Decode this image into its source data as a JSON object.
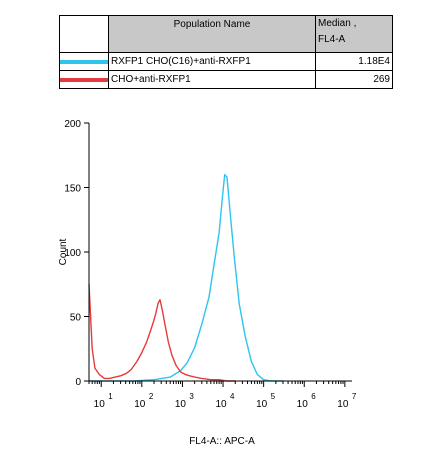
{
  "legend": {
    "header_name": "Population Name",
    "header_median_line1": "Median ,",
    "header_median_line2": "FL4-A",
    "rows": [
      {
        "name": "RXFP1 CHO(C16)+anti-RXFP1",
        "median": "1.18E4",
        "color": "#2ec4ec"
      },
      {
        "name": "CHO+anti-RXFP1",
        "median": "269",
        "color": "#e83a3a"
      }
    ]
  },
  "chart_data": {
    "type": "line",
    "xlabel": "FL4-A:: APC-A",
    "ylabel": "Count",
    "xscale": "log",
    "xlim": [
      5,
      15000000
    ],
    "ylim": [
      0,
      200
    ],
    "yticks": [
      0,
      50,
      100,
      150,
      200
    ],
    "xticks": [
      {
        "base": "10",
        "exp": "1"
      },
      {
        "base": "10",
        "exp": "2"
      },
      {
        "base": "10",
        "exp": "3"
      },
      {
        "base": "10",
        "exp": "4"
      },
      {
        "base": "10",
        "exp": "5"
      },
      {
        "base": "10",
        "exp": "6"
      },
      {
        "base": "10",
        "exp": "7"
      }
    ],
    "series": [
      {
        "name": "RXFP1 CHO(C16)+anti-RXFP1",
        "color": "#2ec4ec",
        "x": [
          5,
          60,
          200,
          500,
          900,
          1300,
          2000,
          3000,
          4500,
          6000,
          8000,
          9500,
          11000,
          12500,
          15000,
          19000,
          25000,
          35000,
          50000,
          70000,
          100000,
          150000,
          300000
        ],
        "y": [
          0,
          0,
          1,
          3,
          8,
          14,
          26,
          44,
          65,
          90,
          115,
          140,
          160,
          158,
          130,
          95,
          60,
          35,
          15,
          5,
          1,
          0,
          0
        ]
      },
      {
        "name": "CHO+anti-RXFP1",
        "color": "#e83a3a",
        "x": [
          5,
          6,
          7,
          9,
          12,
          16,
          22,
          30,
          42,
          55,
          75,
          100,
          130,
          160,
          190,
          220,
          250,
          280,
          320,
          380,
          450,
          550,
          700,
          900,
          1200,
          1500,
          2000,
          3000,
          5000,
          8000,
          12000,
          20000
        ],
        "y": [
          75,
          25,
          10,
          5,
          2,
          2,
          3,
          4,
          6,
          9,
          15,
          22,
          30,
          38,
          45,
          52,
          60,
          63,
          55,
          42,
          30,
          20,
          12,
          7,
          5,
          4,
          3,
          2,
          1,
          1,
          0,
          0
        ]
      }
    ]
  }
}
